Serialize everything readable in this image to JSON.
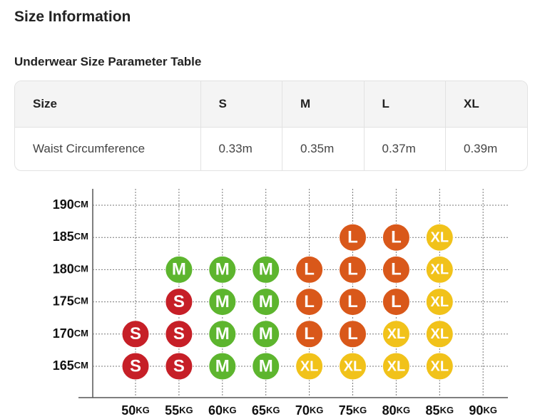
{
  "header": {
    "title": "Size Information",
    "subtitle": "Underwear Size Parameter Table"
  },
  "table": {
    "rows": [
      [
        "Size",
        "S",
        "M",
        "L",
        "XL"
      ],
      [
        "Waist Circumference",
        "0.33m",
        "0.35m",
        "0.37m",
        "0.39m"
      ]
    ]
  },
  "size_chart": {
    "heights": [
      {
        "number": "190",
        "unit": "CM"
      },
      {
        "number": "185",
        "unit": "CM"
      },
      {
        "number": "180",
        "unit": "CM"
      },
      {
        "number": "175",
        "unit": "CM"
      },
      {
        "number": "170",
        "unit": "CM"
      },
      {
        "number": "165",
        "unit": "CM"
      }
    ],
    "weights": [
      {
        "number": "50",
        "unit": "KG"
      },
      {
        "number": "55",
        "unit": "KG"
      },
      {
        "number": "60",
        "unit": "KG"
      },
      {
        "number": "65",
        "unit": "KG"
      },
      {
        "number": "70",
        "unit": "KG"
      },
      {
        "number": "75",
        "unit": "KG"
      },
      {
        "number": "80",
        "unit": "KG"
      },
      {
        "number": "85",
        "unit": "KG"
      },
      {
        "number": "90",
        "unit": "KG"
      }
    ],
    "rows": [
      [
        null,
        null,
        null,
        null,
        null,
        null,
        null,
        null,
        null
      ],
      [
        null,
        null,
        null,
        null,
        null,
        "L",
        "L",
        "XL",
        null
      ],
      [
        null,
        "M",
        "M",
        "M",
        "L",
        "L",
        "L",
        "XL",
        null
      ],
      [
        null,
        "S",
        "M",
        "M",
        "L",
        "L",
        "L",
        "XL",
        null
      ],
      [
        "S",
        "S",
        "M",
        "M",
        "L",
        "L",
        "XL",
        "XL",
        null
      ],
      [
        "S",
        "S",
        "M",
        "M",
        "XL",
        "XL",
        "XL",
        "XL",
        null
      ]
    ],
    "colors": {
      "S": "#c61f27",
      "M": "#5db52e",
      "L": "#d9581a",
      "XL": "#f1c21a"
    }
  }
}
